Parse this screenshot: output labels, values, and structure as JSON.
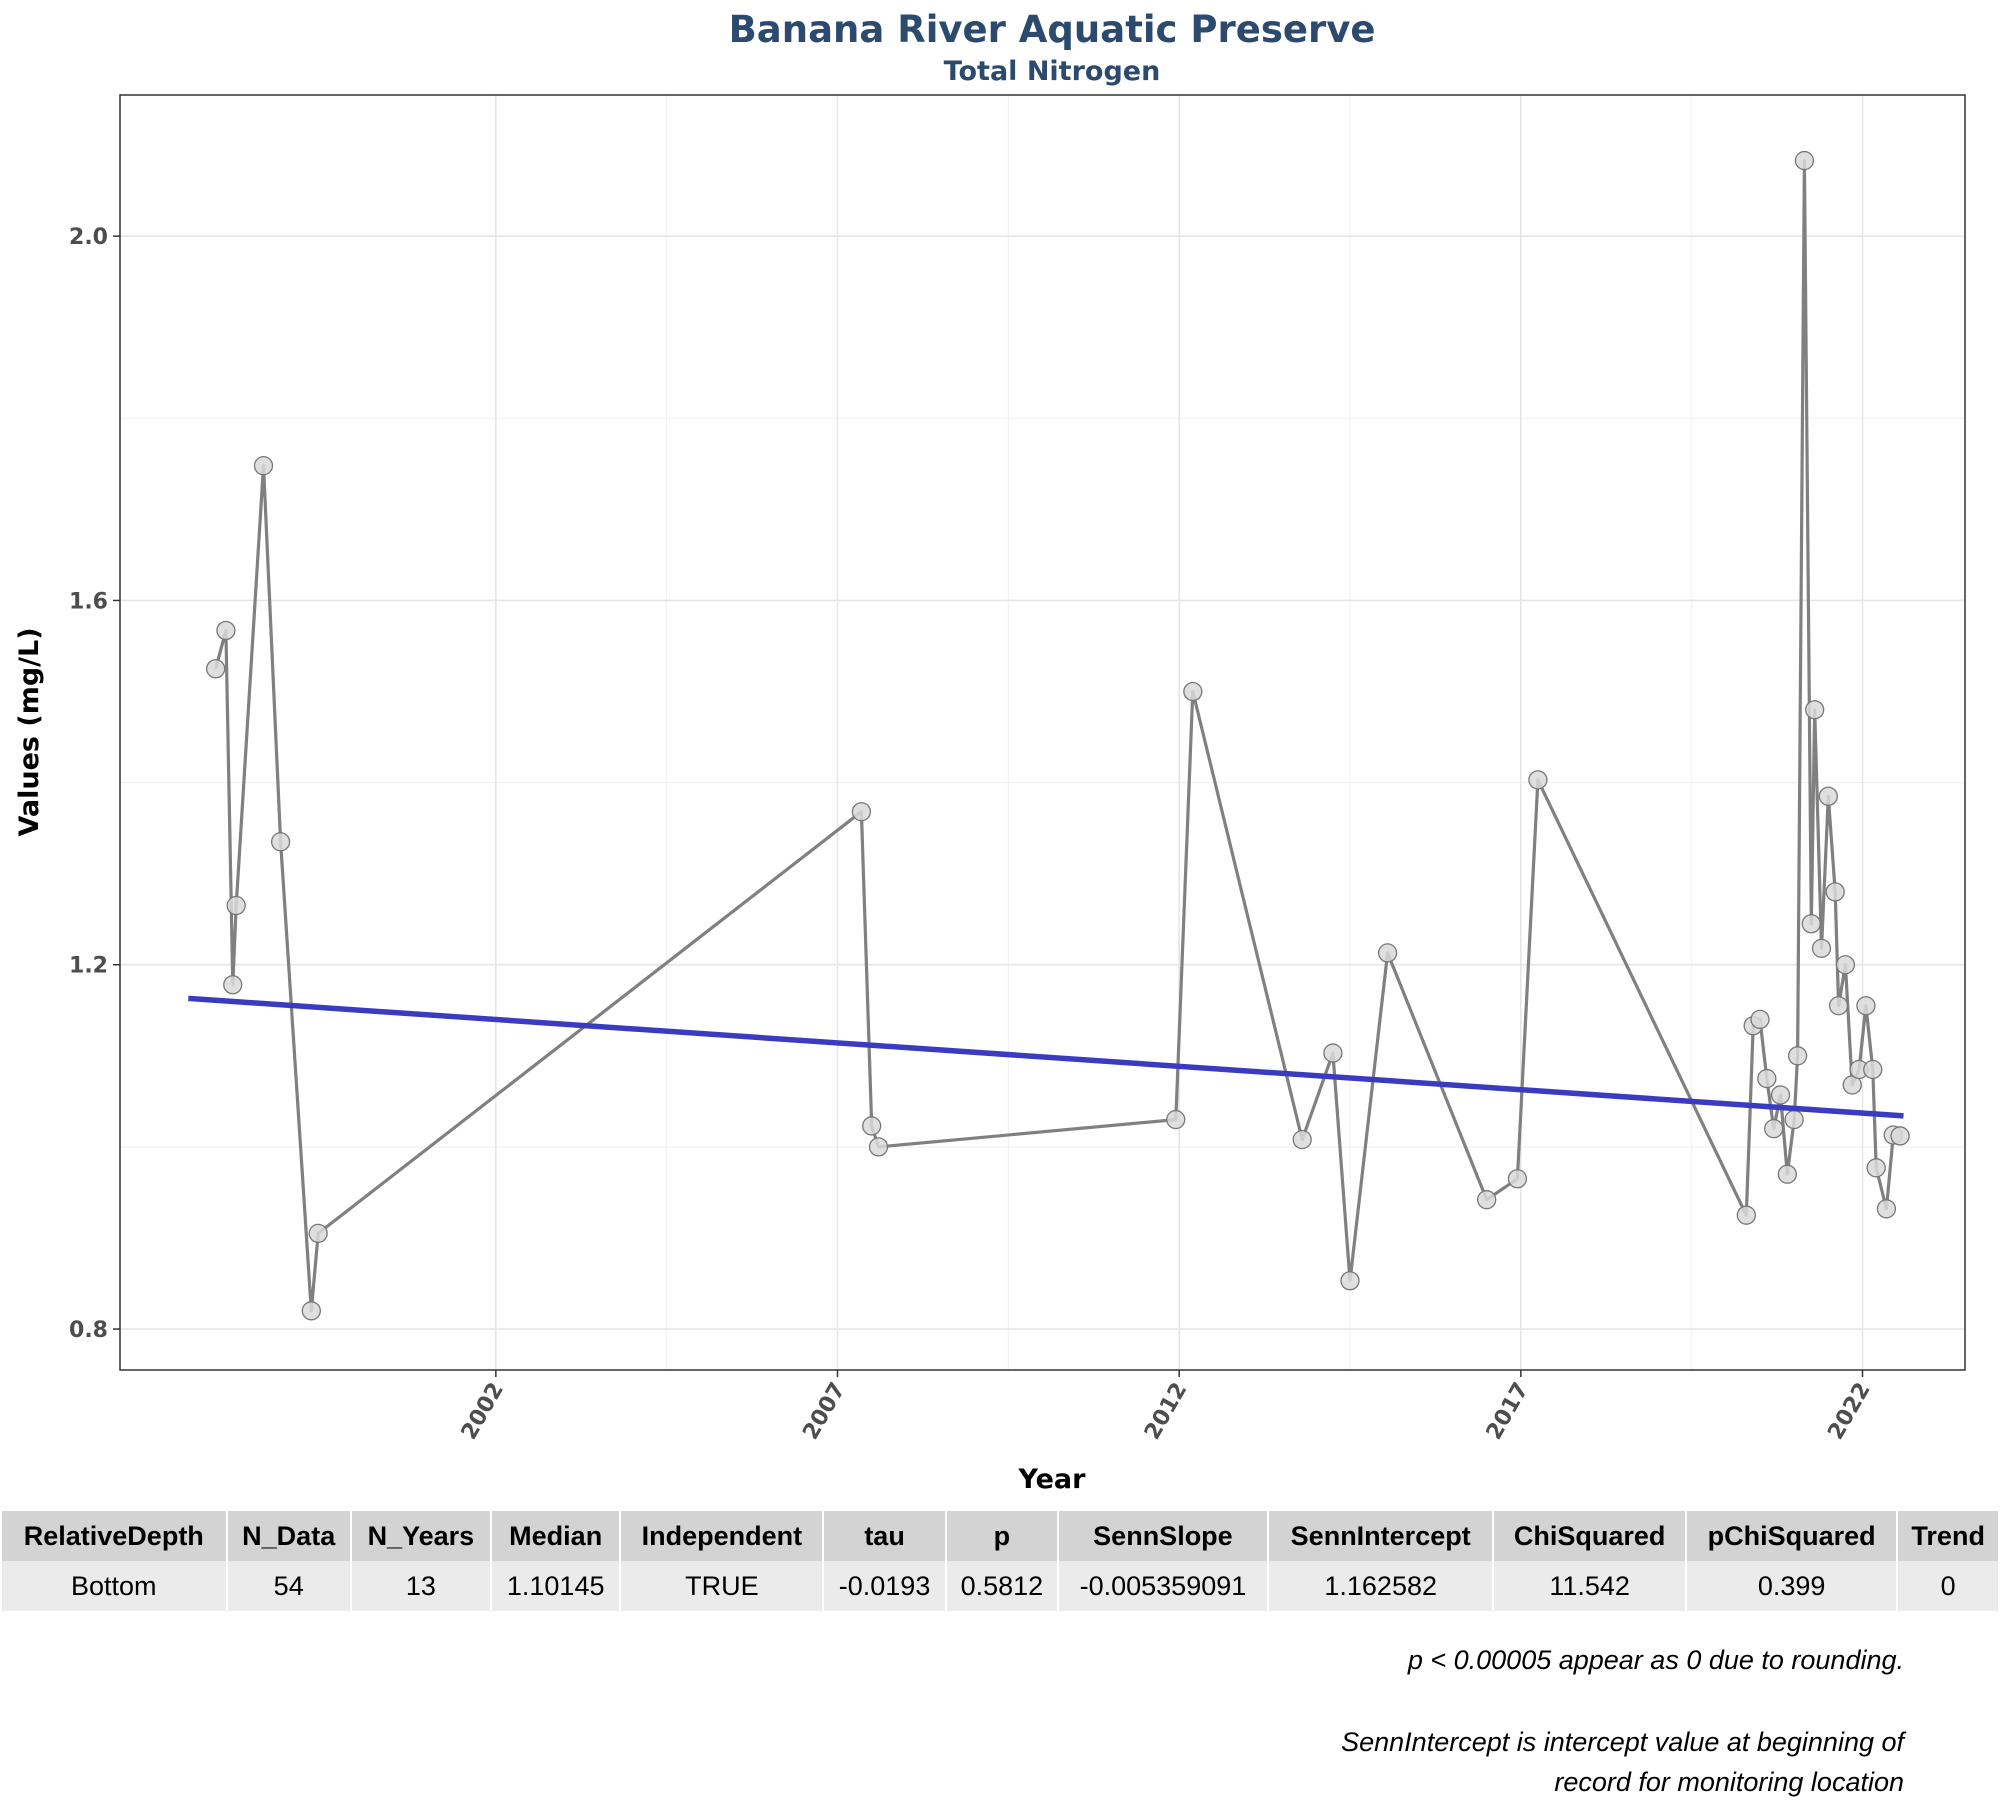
{
  "chart_data": {
    "type": "line",
    "title": "Banana River Aquatic Preserve",
    "subtitle": "Total Nitrogen",
    "xlabel": "Year",
    "ylabel": "Values (mg/L)",
    "x_ticks": [
      2002,
      2007,
      2012,
      2017,
      2022
    ],
    "y_ticks": [
      0.8,
      1.2,
      1.6,
      2.0
    ],
    "xlim": [
      1996.5,
      2023.5
    ],
    "ylim": [
      0.755,
      2.155
    ],
    "grid": true,
    "series": [
      {
        "points": [
          [
            1997.9,
            1.525
          ],
          [
            1998.05,
            1.567
          ],
          [
            1998.15,
            1.178
          ],
          [
            1998.2,
            1.265
          ],
          [
            1998.6,
            1.748
          ],
          [
            1998.85,
            1.335
          ],
          [
            1999.3,
            0.82
          ],
          [
            1999.4,
            0.905
          ],
          [
            2007.35,
            1.368
          ],
          [
            2007.5,
            1.023
          ],
          [
            2007.6,
            1.0
          ],
          [
            2011.95,
            1.03
          ],
          [
            2012.2,
            1.5
          ],
          [
            2013.8,
            1.008
          ],
          [
            2014.25,
            1.103
          ],
          [
            2014.5,
            0.853
          ],
          [
            2015.05,
            1.213
          ],
          [
            2016.5,
            0.942
          ],
          [
            2016.95,
            0.965
          ],
          [
            2017.25,
            1.403
          ],
          [
            2020.3,
            0.925
          ],
          [
            2020.4,
            1.133
          ],
          [
            2020.5,
            1.14
          ],
          [
            2020.6,
            1.075
          ],
          [
            2020.7,
            1.02
          ],
          [
            2020.8,
            1.057
          ],
          [
            2020.9,
            0.97
          ],
          [
            2021.0,
            1.03
          ],
          [
            2021.05,
            1.1
          ],
          [
            2021.15,
            2.083
          ],
          [
            2021.25,
            1.245
          ],
          [
            2021.3,
            1.48
          ],
          [
            2021.4,
            1.218
          ],
          [
            2021.5,
            1.385
          ],
          [
            2021.6,
            1.28
          ],
          [
            2021.65,
            1.155
          ],
          [
            2021.75,
            1.2
          ],
          [
            2021.85,
            1.068
          ],
          [
            2021.95,
            1.085
          ],
          [
            2022.05,
            1.155
          ],
          [
            2022.15,
            1.085
          ],
          [
            2022.2,
            0.977
          ],
          [
            2022.35,
            0.932
          ],
          [
            2022.45,
            1.013
          ],
          [
            2022.55,
            1.012
          ]
        ],
        "color": "#808080"
      },
      {
        "type": "trend-line",
        "points": [
          [
            1997.5,
            1.163
          ],
          [
            2022.6,
            1.034
          ]
        ],
        "color": "#3b3bc2"
      }
    ]
  },
  "table": {
    "headers": [
      "RelativeDepth",
      "N_Data",
      "N_Years",
      "Median",
      "Independent",
      "tau",
      "p",
      "SennSlope",
      "SennIntercept",
      "ChiSquared",
      "pChiSquared",
      "Trend"
    ],
    "rows": [
      [
        "Bottom",
        "54",
        "13",
        "1.10145",
        "TRUE",
        "-0.0193",
        "0.5812",
        "-0.005359091",
        "1.162582",
        "11.542",
        "0.399",
        "0"
      ]
    ]
  },
  "notes": {
    "rounding": "p < 0.00005 appear as 0 due to rounding.",
    "intercept_line1": "SennIntercept is intercept value at beginning of",
    "intercept_line2": "record for monitoring location"
  }
}
